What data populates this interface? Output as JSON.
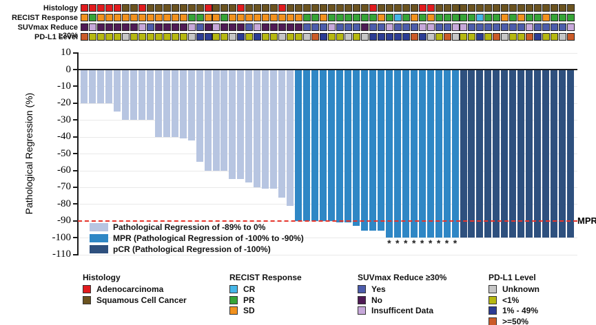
{
  "colors": {
    "bar_light": "#b7c5e1",
    "bar_mpr": "#2f87c5",
    "bar_pcr": "#2e507e",
    "red_line": "#e63329",
    "grid": "#e9e9e9",
    "axis": "#1a1a1a"
  },
  "tracks": {
    "rows": [
      {
        "label": "Histology",
        "key": "histology"
      },
      {
        "label": "RECIST Response",
        "key": "recist"
      },
      {
        "label": "SUVmax Reduce ≥30%",
        "key": "suvmax"
      },
      {
        "label": "PD-L1 Level",
        "key": "pdl1"
      }
    ],
    "histology": [
      "A",
      "A",
      "A",
      "A",
      "A",
      "S",
      "S",
      "A",
      "S",
      "S",
      "S",
      "S",
      "S",
      "S",
      "S",
      "A",
      "S",
      "S",
      "S",
      "A",
      "S",
      "S",
      "S",
      "S",
      "A",
      "S",
      "S",
      "S",
      "S",
      "S",
      "S",
      "S",
      "S",
      "S",
      "S",
      "A",
      "S",
      "S",
      "S",
      "S",
      "S",
      "A",
      "A",
      "S",
      "S",
      "S",
      "S",
      "S",
      "S",
      "S",
      "S",
      "S",
      "S",
      "S",
      "S",
      "S",
      "S",
      "S",
      "S",
      "S"
    ],
    "recist": [
      "SD",
      "PR",
      "SD",
      "SD",
      "SD",
      "SD",
      "SD",
      "SD",
      "SD",
      "SD",
      "SD",
      "SD",
      "SD",
      "PR",
      "PR",
      "SD",
      "SD",
      "PR",
      "SD",
      "SD",
      "SD",
      "SD",
      "SD",
      "SD",
      "SD",
      "SD",
      "SD",
      "PR",
      "PR",
      "SD",
      "PR",
      "PR",
      "PR",
      "PR",
      "PR",
      "PR",
      "SD",
      "PR",
      "CR",
      "PR",
      "SD",
      "PR",
      "SD",
      "PR",
      "PR",
      "PR",
      "PR",
      "PR",
      "CR",
      "PR",
      "PR",
      "SD",
      "PR",
      "SD",
      "PR",
      "PR",
      "SD",
      "PR",
      "PR",
      "PR"
    ],
    "suvmax": [
      "N",
      "I",
      "N",
      "N",
      "N",
      "N",
      "N",
      "I",
      "Y",
      "N",
      "N",
      "N",
      "N",
      "I",
      "Y",
      "N",
      "I",
      "N",
      "N",
      "N",
      "Y",
      "I",
      "N",
      "N",
      "N",
      "N",
      "N",
      "Y",
      "Y",
      "Y",
      "I",
      "Y",
      "Y",
      "Y",
      "N",
      "Y",
      "Y",
      "I",
      "Y",
      "Y",
      "Y",
      "I",
      "I",
      "Y",
      "Y",
      "I",
      "I",
      "Y",
      "Y",
      "Y",
      "Y",
      "Y",
      "Y",
      "Y",
      "I",
      "Y",
      "Y",
      "Y",
      "Y",
      "I"
    ],
    "pdl1": [
      "H",
      "L",
      "L",
      "L",
      "L",
      "U",
      "L",
      "L",
      "L",
      "L",
      "L",
      "L",
      "L",
      "U",
      "M",
      "M",
      "L",
      "L",
      "U",
      "M",
      "L",
      "M",
      "L",
      "L",
      "U",
      "L",
      "L",
      "U",
      "H",
      "M",
      "L",
      "L",
      "U",
      "L",
      "U",
      "M",
      "M",
      "M",
      "M",
      "M",
      "H",
      "M",
      "U",
      "L",
      "H",
      "U",
      "L",
      "L",
      "M",
      "L",
      "H",
      "U",
      "L",
      "L",
      "H",
      "M",
      "L",
      "L",
      "U",
      "H"
    ],
    "palette": {
      "histology": {
        "A": "#e11b1e",
        "S": "#6b531f"
      },
      "recist": {
        "SD": "#f2911d",
        "PR": "#36a436",
        "CR": "#45b6e8"
      },
      "suvmax": {
        "Y": "#4c5cab",
        "N": "#4f1a55",
        "I": "#c7a8da"
      },
      "pdl1": {
        "U": "#c6c6c6",
        "L": "#b6b811",
        "M": "#2c3c94",
        "H": "#cb5b28"
      }
    }
  },
  "chart_data": {
    "type": "bar",
    "title": "",
    "xlabel": "",
    "ylabel": "Pathological Regression (%)",
    "ylim": [
      -110,
      10
    ],
    "yticks": [
      10,
      0,
      -10,
      -20,
      -30,
      -40,
      -50,
      -60,
      -70,
      -80,
      -90,
      -100,
      -110
    ],
    "grid": "horizontal",
    "n_patients": 60,
    "series": [
      {
        "name": "Pathological Regression of -89% to 0%",
        "color_key": "bar_light",
        "values": [
          -20,
          -20,
          -20,
          -20,
          -25,
          -30,
          -30,
          -30,
          -30,
          -40,
          -40,
          -40,
          -41,
          -42,
          -55,
          -60,
          -60,
          -60,
          -65,
          -65,
          -67,
          -70,
          -71,
          -71,
          -76,
          -81
        ]
      },
      {
        "name": "MPR (Pathological Regression of -100% to -90%)",
        "color_key": "bar_mpr",
        "values": [
          -90,
          -90,
          -90,
          -90,
          -90,
          -91,
          -91,
          -93,
          -96,
          -96,
          -96,
          -100,
          -100,
          -100,
          -100,
          -100,
          -100,
          -100,
          -100,
          -100
        ]
      },
      {
        "name": "pCR (Pathological Regression of -100%)",
        "color_key": "bar_pcr",
        "values": [
          -100,
          -100,
          -100,
          -100,
          -100,
          -100,
          -100,
          -100,
          -100,
          -100,
          -100,
          -100,
          -100,
          -100
        ]
      }
    ],
    "mpr_line": {
      "value": -90,
      "label": "MPR"
    },
    "asterisks": {
      "symbol": "*",
      "bar_indices": [
        38,
        39,
        40,
        41,
        42,
        43,
        44,
        45,
        46
      ]
    },
    "legend_position": "inside lower-left"
  },
  "bottom_legend": [
    {
      "title": "Histology",
      "items": [
        {
          "label": "Adenocarcinoma",
          "color": "#e11b1e"
        },
        {
          "label": "Squamous Cell Cancer",
          "color": "#6b531f"
        }
      ]
    },
    {
      "title": "RECIST Response",
      "items": [
        {
          "label": "CR",
          "color": "#45b6e8"
        },
        {
          "label": "PR",
          "color": "#36a436"
        },
        {
          "label": "SD",
          "color": "#f2911d"
        }
      ]
    },
    {
      "title": "SUVmax Reduce ≥30%",
      "items": [
        {
          "label": "Yes",
          "color": "#4c5cab"
        },
        {
          "label": "No",
          "color": "#4f1a55"
        },
        {
          "label": "Insufficent Data",
          "color": "#c7a8da"
        }
      ]
    },
    {
      "title": "PD-L1 Level",
      "items": [
        {
          "label": "Unknown",
          "color": "#c6c6c6"
        },
        {
          "label": "<1%",
          "color": "#b6b811"
        },
        {
          "label": "1% - 49%",
          "color": "#2c3c94"
        },
        {
          "label": ">=50%",
          "color": "#cb5b28"
        }
      ]
    }
  ]
}
